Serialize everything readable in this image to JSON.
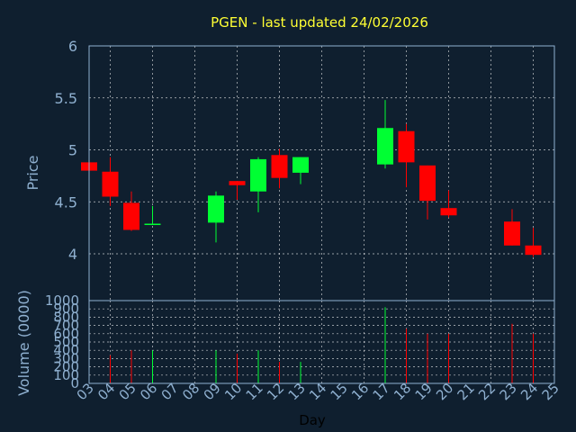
{
  "chart_data": {
    "type": "candlestick",
    "title": "PGEN - last updated 24/02/2026",
    "xlabel": "Day",
    "price_panel": {
      "ylabel": "Price",
      "ylim": [
        3.55,
        6.0
      ],
      "yticks": [
        "4",
        "4.5",
        "5",
        "5.5",
        "6"
      ],
      "grid": true
    },
    "volume_panel": {
      "ylabel": "Volume (0000)",
      "ylim": [
        0,
        1000
      ],
      "yticks": [
        "0",
        "100",
        "200",
        "300",
        "400",
        "500",
        "600",
        "700",
        "800",
        "900",
        "1000"
      ],
      "grid": true
    },
    "x_ticks": [
      "03",
      "04",
      "05",
      "06",
      "07",
      "08",
      "09",
      "10",
      "11",
      "12",
      "13",
      "14",
      "15",
      "16",
      "17",
      "18",
      "19",
      "20",
      "21",
      "22",
      "23",
      "24",
      "25"
    ],
    "colors": {
      "up": "#00ff33",
      "down": "#ff0000",
      "background": "#0f1f2f",
      "axis": "#8fb0d0",
      "title": "#ffff33"
    },
    "candles": [
      {
        "day": "03",
        "open": 4.88,
        "high": 4.88,
        "low": 4.79,
        "close": 4.8,
        "volume": 0
      },
      {
        "day": "04",
        "open": 4.79,
        "high": 4.93,
        "low": 4.46,
        "close": 4.55,
        "volume": 340
      },
      {
        "day": "05",
        "open": 4.49,
        "high": 4.6,
        "low": 4.22,
        "close": 4.23,
        "volume": 400
      },
      {
        "day": "06",
        "open": 4.28,
        "high": 4.46,
        "low": 4.28,
        "close": 4.29,
        "volume": 400
      },
      {
        "day": "09",
        "open": 4.3,
        "high": 4.6,
        "low": 4.11,
        "close": 4.56,
        "volume": 400
      },
      {
        "day": "10",
        "open": 4.7,
        "high": 4.7,
        "low": 4.52,
        "close": 4.66,
        "volume": 360
      },
      {
        "day": "11",
        "open": 4.6,
        "high": 4.93,
        "low": 4.4,
        "close": 4.91,
        "volume": 400
      },
      {
        "day": "12",
        "open": 4.95,
        "high": 5.01,
        "low": 4.63,
        "close": 4.73,
        "volume": 260
      },
      {
        "day": "13",
        "open": 4.78,
        "high": 4.93,
        "low": 4.67,
        "close": 4.93,
        "volume": 260
      },
      {
        "day": "17",
        "open": 4.86,
        "high": 5.48,
        "low": 4.82,
        "close": 5.21,
        "volume": 920
      },
      {
        "day": "18",
        "open": 5.18,
        "high": 5.25,
        "low": 4.64,
        "close": 4.88,
        "volume": 660
      },
      {
        "day": "19",
        "open": 4.85,
        "high": 4.85,
        "low": 4.33,
        "close": 4.51,
        "volume": 600
      },
      {
        "day": "20",
        "open": 4.44,
        "high": 4.61,
        "low": 4.35,
        "close": 4.37,
        "volume": 600
      },
      {
        "day": "23",
        "open": 4.31,
        "high": 4.43,
        "low": 4.08,
        "close": 4.08,
        "volume": 720
      },
      {
        "day": "24",
        "open": 4.08,
        "high": 4.25,
        "low": 3.97,
        "close": 3.99,
        "volume": 600
      }
    ]
  }
}
